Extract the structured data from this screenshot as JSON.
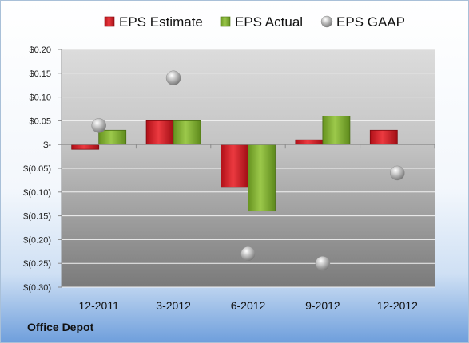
{
  "chart_data": {
    "type": "bar",
    "categories": [
      "12-2011",
      "3-2012",
      "6-2012",
      "9-2012",
      "12-2012"
    ],
    "series": [
      {
        "name": "EPS Estimate",
        "kind": "bar",
        "color": "#c0131b",
        "values": [
          -0.01,
          0.05,
          -0.09,
          0.01,
          0.03
        ]
      },
      {
        "name": "EPS Actual",
        "kind": "bar",
        "color": "#79a72c",
        "values": [
          0.03,
          0.05,
          -0.14,
          0.06,
          null
        ]
      },
      {
        "name": "EPS GAAP",
        "kind": "marker",
        "color": "#a8a8a8",
        "values": [
          0.04,
          0.14,
          -0.23,
          -0.25,
          -0.06
        ]
      }
    ],
    "y_ticks": [
      {
        "value": 0.2,
        "label": "$0.20"
      },
      {
        "value": 0.15,
        "label": "$0.15"
      },
      {
        "value": 0.1,
        "label": "$0.10"
      },
      {
        "value": 0.05,
        "label": "$0.05"
      },
      {
        "value": 0,
        "label": "$-"
      },
      {
        "value": -0.05,
        "label": "$(0.05)"
      },
      {
        "value": -0.1,
        "label": "$(0.10)"
      },
      {
        "value": -0.15,
        "label": "$(0.15)"
      },
      {
        "value": -0.2,
        "label": "$(0.20)"
      },
      {
        "value": -0.25,
        "label": "$(0.25)"
      },
      {
        "value": -0.3,
        "label": "$(0.30)"
      }
    ],
    "ylim": [
      -0.3,
      0.2
    ],
    "grid": true,
    "legend_position": "top"
  },
  "company_name": "Office Depot"
}
